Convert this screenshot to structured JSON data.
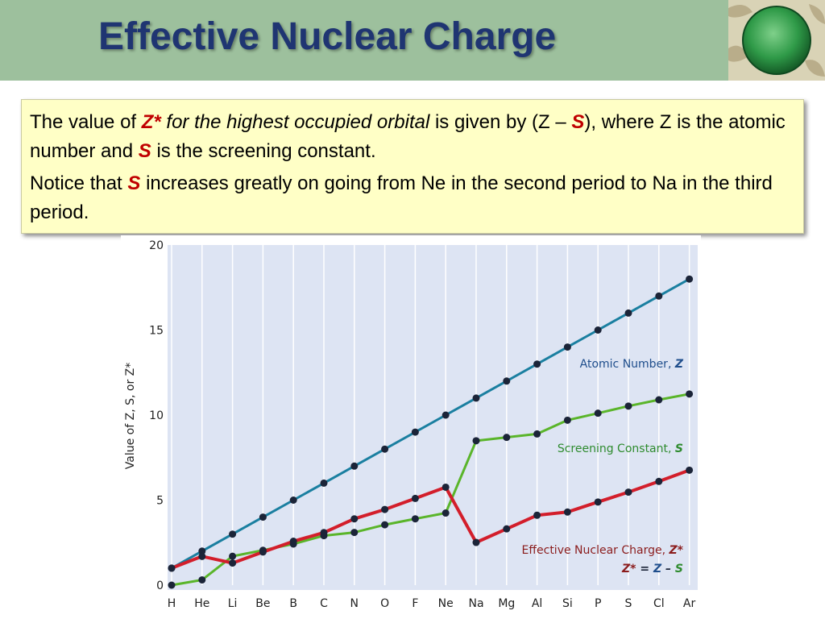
{
  "slide": {
    "title": "Effective Nuclear Charge",
    "para1": {
      "t1": "The value of ",
      "zstar": "Z*",
      "t2": " for the highest occupied orbital",
      "t3": " is given by (Z – ",
      "s": "S",
      "t4": "), where Z is the atomic number and ",
      "s2": "S",
      "t5": " is the screening constant."
    },
    "para2": {
      "t1": "Notice that ",
      "s": "S",
      "t2": " increases greatly on going from Ne in the second period to Na in the third period."
    }
  },
  "colors": {
    "atomic": "#1a7fa0",
    "screening": "#5ab52a",
    "effective": "#d31e2b",
    "marker": "#1b2438",
    "label_atomic": "#1f4e8c",
    "label_screening": "#2e8b2e",
    "label_effective": "#8b1c1c"
  },
  "chart_data": {
    "type": "line",
    "categories": [
      "H",
      "He",
      "Li",
      "Be",
      "B",
      "C",
      "N",
      "O",
      "F",
      "Ne",
      "Na",
      "Mg",
      "Al",
      "Si",
      "P",
      "S",
      "Cl",
      "Ar"
    ],
    "ylabel": "Value of Z, S, or Z*",
    "ylim": [
      0,
      20
    ],
    "yticks": [
      "0",
      "5",
      "10",
      "15",
      "20"
    ],
    "grid": "vertical",
    "series": [
      {
        "key": "atomic",
        "name": "Atomic Number, ",
        "sym": "Z",
        "values": [
          1,
          2,
          3,
          4,
          5,
          6,
          7,
          8,
          9,
          10,
          11,
          12,
          13,
          14,
          15,
          16,
          17,
          18
        ]
      },
      {
        "key": "screening",
        "name": "Screening Constant, ",
        "sym": "S",
        "values": [
          0,
          0.31,
          1.7,
          2.05,
          2.42,
          2.91,
          3.1,
          3.55,
          3.9,
          4.24,
          8.49,
          8.69,
          8.89,
          9.7,
          10.11,
          10.53,
          10.9,
          11.24
        ]
      },
      {
        "key": "effective",
        "name": "Effective Nuclear Charge, ",
        "sym": "Z*",
        "values": [
          1,
          1.69,
          1.3,
          1.95,
          2.58,
          3.09,
          3.9,
          4.45,
          5.1,
          5.76,
          2.51,
          3.31,
          4.11,
          4.3,
          4.89,
          5.47,
          6.1,
          6.76
        ]
      }
    ],
    "formula": {
      "z": "Z*",
      "eq": " = ",
      "zz": "Z",
      "minus": " – ",
      "s": "S"
    }
  }
}
